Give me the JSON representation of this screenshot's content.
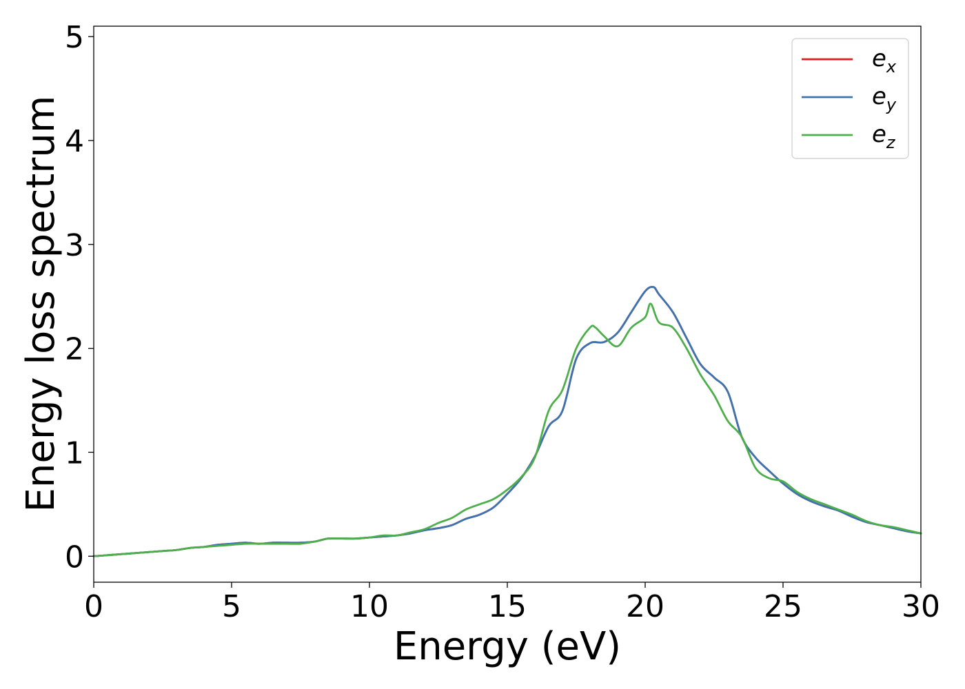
{
  "chart_data": {
    "type": "line",
    "title": "",
    "xlabel": "Energy (eV)",
    "ylabel": "Energy loss spectrum",
    "xlim": [
      0,
      30
    ],
    "ylim": [
      -0.25,
      5.1
    ],
    "xticks": [
      0,
      5,
      10,
      15,
      20,
      25,
      30
    ],
    "yticks": [
      0,
      1,
      2,
      3,
      4,
      5
    ],
    "grid": false,
    "legend_position": "top-right",
    "series": [
      {
        "name": "e",
        "subscript": "x",
        "color": "#e41a1c",
        "x": [
          0,
          0.5,
          1,
          1.5,
          2,
          2.5,
          3,
          3.5,
          4,
          4.5,
          5,
          5.5,
          6,
          6.5,
          7,
          7.5,
          8,
          8.5,
          9,
          9.5,
          10,
          10.5,
          11,
          11.5,
          12,
          12.5,
          13,
          13.5,
          14,
          14.5,
          15,
          15.5,
          16,
          16.5,
          17,
          17.5,
          18,
          18.5,
          19,
          19.5,
          20,
          20.3,
          20.5,
          21,
          21.5,
          22,
          22.5,
          23,
          23.5,
          24,
          24.5,
          25,
          25.5,
          26,
          26.5,
          27,
          27.5,
          28,
          28.5,
          29,
          29.5,
          30
        ],
        "y": [
          0,
          0.01,
          0.02,
          0.03,
          0.04,
          0.05,
          0.06,
          0.08,
          0.09,
          0.11,
          0.12,
          0.13,
          0.12,
          0.13,
          0.13,
          0.13,
          0.14,
          0.17,
          0.17,
          0.17,
          0.18,
          0.19,
          0.2,
          0.22,
          0.25,
          0.27,
          0.3,
          0.36,
          0.4,
          0.47,
          0.6,
          0.75,
          0.96,
          1.25,
          1.4,
          1.9,
          2.05,
          2.06,
          2.15,
          2.35,
          2.55,
          2.59,
          2.52,
          2.35,
          2.1,
          1.85,
          1.72,
          1.58,
          1.15,
          0.95,
          0.82,
          0.7,
          0.6,
          0.53,
          0.48,
          0.44,
          0.38,
          0.33,
          0.3,
          0.27,
          0.24,
          0.22
        ]
      },
      {
        "name": "e",
        "subscript": "y",
        "color": "#3b74b0",
        "x": [
          0,
          0.5,
          1,
          1.5,
          2,
          2.5,
          3,
          3.5,
          4,
          4.5,
          5,
          5.5,
          6,
          6.5,
          7,
          7.5,
          8,
          8.5,
          9,
          9.5,
          10,
          10.5,
          11,
          11.5,
          12,
          12.5,
          13,
          13.5,
          14,
          14.5,
          15,
          15.5,
          16,
          16.5,
          17,
          17.5,
          18,
          18.5,
          19,
          19.5,
          20,
          20.3,
          20.5,
          21,
          21.5,
          22,
          22.5,
          23,
          23.5,
          24,
          24.5,
          25,
          25.5,
          26,
          26.5,
          27,
          27.5,
          28,
          28.5,
          29,
          29.5,
          30
        ],
        "y": [
          0,
          0.01,
          0.02,
          0.03,
          0.04,
          0.05,
          0.06,
          0.08,
          0.09,
          0.11,
          0.12,
          0.13,
          0.12,
          0.13,
          0.13,
          0.13,
          0.14,
          0.17,
          0.17,
          0.17,
          0.18,
          0.19,
          0.2,
          0.22,
          0.25,
          0.27,
          0.3,
          0.36,
          0.4,
          0.47,
          0.6,
          0.75,
          0.96,
          1.25,
          1.4,
          1.9,
          2.05,
          2.06,
          2.15,
          2.35,
          2.55,
          2.59,
          2.52,
          2.35,
          2.1,
          1.85,
          1.72,
          1.58,
          1.15,
          0.95,
          0.82,
          0.7,
          0.6,
          0.53,
          0.48,
          0.44,
          0.38,
          0.33,
          0.3,
          0.27,
          0.24,
          0.22
        ]
      },
      {
        "name": "e",
        "subscript": "z",
        "color": "#4daf4a",
        "x": [
          0,
          0.5,
          1,
          1.5,
          2,
          2.5,
          3,
          3.5,
          4,
          4.5,
          5,
          5.5,
          6,
          6.5,
          7,
          7.5,
          8,
          8.5,
          9,
          9.5,
          10,
          10.5,
          11,
          11.5,
          12,
          12.5,
          13,
          13.5,
          14,
          14.5,
          15,
          15.5,
          16,
          16.5,
          17,
          17.5,
          18,
          18.2,
          18.5,
          19,
          19.5,
          20,
          20.2,
          20.5,
          21,
          21.5,
          22,
          22.5,
          23,
          23.5,
          24,
          24.5,
          25,
          25.5,
          26,
          26.5,
          27,
          27.5,
          28,
          28.5,
          29,
          29.5,
          30
        ],
        "y": [
          0,
          0.01,
          0.02,
          0.03,
          0.04,
          0.05,
          0.06,
          0.08,
          0.09,
          0.1,
          0.11,
          0.12,
          0.12,
          0.12,
          0.12,
          0.12,
          0.14,
          0.17,
          0.17,
          0.17,
          0.18,
          0.2,
          0.2,
          0.23,
          0.26,
          0.32,
          0.37,
          0.45,
          0.5,
          0.55,
          0.64,
          0.76,
          0.95,
          1.4,
          1.6,
          2.0,
          2.2,
          2.2,
          2.12,
          2.02,
          2.2,
          2.3,
          2.43,
          2.25,
          2.2,
          2.0,
          1.75,
          1.55,
          1.3,
          1.15,
          0.85,
          0.75,
          0.72,
          0.62,
          0.55,
          0.5,
          0.45,
          0.4,
          0.34,
          0.3,
          0.28,
          0.25,
          0.22
        ]
      }
    ]
  }
}
